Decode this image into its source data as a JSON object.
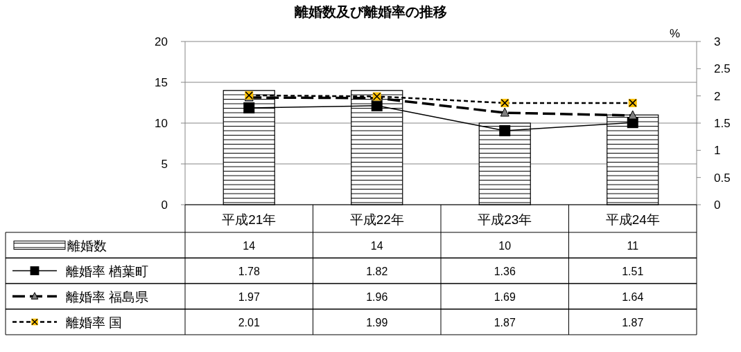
{
  "chart_data": {
    "type": "bar",
    "title": "離婚数及び離婚率の推移",
    "y2label": "%",
    "categories": [
      "平成21年",
      "平成22年",
      "平成23年",
      "平成24年"
    ],
    "series": [
      {
        "name": "離婚数",
        "color": "#000000",
        "values": [
          14,
          14,
          10,
          11
        ]
      },
      {
        "name": "離婚率 楢葉町",
        "type": "line",
        "axis": "y2",
        "color": "#000000",
        "marker": "square",
        "line_style": "solid",
        "values": [
          1.78,
          1.82,
          1.36,
          1.51
        ]
      },
      {
        "name": "離婚率 福島県",
        "type": "line",
        "axis": "y2",
        "color": "#000000",
        "marker": "triangle",
        "line_style": "dashed",
        "values": [
          1.97,
          1.96,
          1.69,
          1.64
        ]
      },
      {
        "name": "離婚率 国",
        "type": "line",
        "axis": "y2",
        "color": "#000000",
        "marker": "cross",
        "line_style": "dotted",
        "values": [
          2.01,
          1.99,
          1.87,
          1.87
        ]
      }
    ],
    "ylim": [
      0,
      20
    ],
    "yticks": [
      0,
      5,
      10,
      15,
      20
    ],
    "y2lim": [
      0,
      3
    ],
    "y2ticks": [
      0,
      0.5,
      1,
      1.5,
      2,
      2.5,
      3
    ],
    "grid": "y",
    "legend": "bottom",
    "data_labels": true
  }
}
